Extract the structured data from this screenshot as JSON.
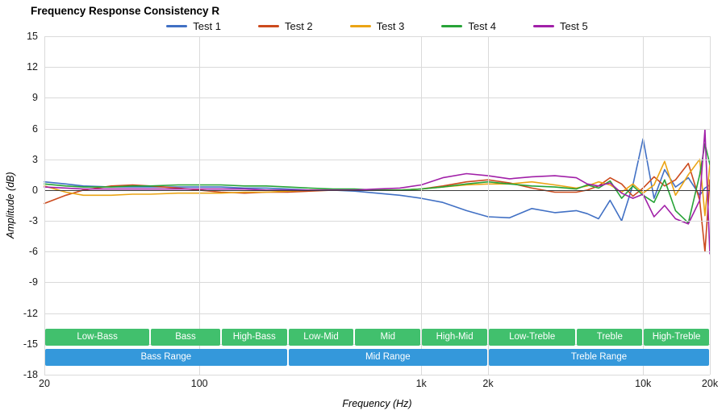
{
  "chart_data": {
    "type": "line",
    "title": "Frequency Response Consistency R",
    "xlabel": "Frequency (Hz)",
    "ylabel": "Amplitude (dB)",
    "x_scale": "log",
    "xlim": [
      20,
      20000
    ],
    "ylim": [
      -18,
      15
    ],
    "grid": true,
    "legend_position": "top",
    "y_ticks": [
      15,
      12,
      9,
      6,
      3,
      0,
      -3,
      -6,
      -9,
      -12,
      -15,
      -18
    ],
    "x_ticks": [
      {
        "label": "20",
        "f": 20
      },
      {
        "label": "100",
        "f": 100
      },
      {
        "label": "1k",
        "f": 1000
      },
      {
        "label": "2k",
        "f": 2000
      },
      {
        "label": "10k",
        "f": 10000
      },
      {
        "label": "20k",
        "f": 20000
      }
    ],
    "x": [
      20,
      25,
      30,
      40,
      50,
      60,
      80,
      100,
      125,
      160,
      200,
      250,
      315,
      400,
      500,
      630,
      800,
      1000,
      1250,
      1600,
      2000,
      2500,
      3150,
      4000,
      5000,
      5600,
      6300,
      7100,
      8000,
      9000,
      10000,
      11200,
      12500,
      14000,
      16000,
      18000,
      19000,
      20000
    ],
    "series": [
      {
        "name": "Test 1",
        "color": "#4170c4",
        "values": [
          0.8,
          0.6,
          0.4,
          0.3,
          0.3,
          0.3,
          0.3,
          0.3,
          0.3,
          0.2,
          0.2,
          0.1,
          0.0,
          0.0,
          -0.1,
          -0.3,
          -0.5,
          -0.8,
          -1.2,
          -2.0,
          -2.6,
          -2.7,
          -1.8,
          -2.2,
          -2.0,
          -2.3,
          -2.8,
          -1.0,
          -3.0,
          0.5,
          5.0,
          -0.8,
          2.0,
          0.3,
          1.2,
          -0.5,
          0.2,
          0.5
        ]
      },
      {
        "name": "Test 2",
        "color": "#cc4a1d",
        "values": [
          -1.3,
          -0.5,
          0.0,
          0.4,
          0.5,
          0.4,
          0.2,
          0.0,
          -0.2,
          -0.3,
          -0.2,
          -0.2,
          -0.1,
          0.0,
          0.0,
          0.0,
          0.0,
          0.1,
          0.4,
          0.8,
          1.0,
          0.7,
          0.2,
          -0.2,
          -0.2,
          0.0,
          0.4,
          1.2,
          0.6,
          -0.6,
          0.2,
          1.3,
          0.4,
          1.0,
          2.6,
          -1.0,
          -6.0,
          1.0
        ]
      },
      {
        "name": "Test 3",
        "color": "#eba414",
        "values": [
          0.4,
          -0.2,
          -0.5,
          -0.5,
          -0.4,
          -0.4,
          -0.3,
          -0.3,
          -0.3,
          -0.2,
          -0.2,
          -0.1,
          0.0,
          0.0,
          0.0,
          0.0,
          0.0,
          0.1,
          0.3,
          0.5,
          0.6,
          0.6,
          0.8,
          0.5,
          0.2,
          0.4,
          0.8,
          0.5,
          -0.2,
          0.6,
          -0.3,
          0.5,
          2.8,
          -0.5,
          1.5,
          3.0,
          -2.5,
          2.5
        ]
      },
      {
        "name": "Test 4",
        "color": "#27a337",
        "values": [
          0.6,
          0.4,
          0.3,
          0.3,
          0.4,
          0.4,
          0.5,
          0.5,
          0.5,
          0.4,
          0.4,
          0.3,
          0.2,
          0.1,
          0.1,
          0.0,
          0.0,
          0.1,
          0.3,
          0.6,
          0.8,
          0.6,
          0.4,
          0.3,
          0.1,
          0.5,
          0.2,
          0.9,
          -0.8,
          0.4,
          -0.5,
          -1.2,
          1.0,
          -2.0,
          -3.2,
          1.5,
          4.5,
          2.5
        ]
      },
      {
        "name": "Test 5",
        "color": "#a120a8",
        "values": [
          0.3,
          0.2,
          0.1,
          0.1,
          0.1,
          0.1,
          0.1,
          0.1,
          0.1,
          0.1,
          0.0,
          0.0,
          0.0,
          0.0,
          0.0,
          0.1,
          0.2,
          0.5,
          1.2,
          1.6,
          1.4,
          1.1,
          1.3,
          1.4,
          1.2,
          0.6,
          0.4,
          0.7,
          -0.3,
          -0.8,
          -0.4,
          -2.6,
          -1.5,
          -2.8,
          -3.3,
          -1.0,
          5.9,
          -6.2
        ]
      }
    ],
    "bands": {
      "sub_band_color": "#41c06d",
      "range_band_color": "#3498db",
      "sub_bands": [
        {
          "label": "Low-Bass",
          "f1": 20,
          "f2": 60
        },
        {
          "label": "Bass",
          "f1": 60,
          "f2": 125
        },
        {
          "label": "High-Bass",
          "f1": 125,
          "f2": 250
        },
        {
          "label": "Low-Mid",
          "f1": 250,
          "f2": 500
        },
        {
          "label": "Mid",
          "f1": 500,
          "f2": 1000
        },
        {
          "label": "High-Mid",
          "f1": 1000,
          "f2": 2000
        },
        {
          "label": "Low-Treble",
          "f1": 2000,
          "f2": 5000
        },
        {
          "label": "Treble",
          "f1": 5000,
          "f2": 10000
        },
        {
          "label": "High-Treble",
          "f1": 10000,
          "f2": 20000
        }
      ],
      "ranges": [
        {
          "label": "Bass Range",
          "f1": 20,
          "f2": 250
        },
        {
          "label": "Mid Range",
          "f1": 250,
          "f2": 2000
        },
        {
          "label": "Treble Range",
          "f1": 2000,
          "f2": 20000
        }
      ]
    }
  }
}
